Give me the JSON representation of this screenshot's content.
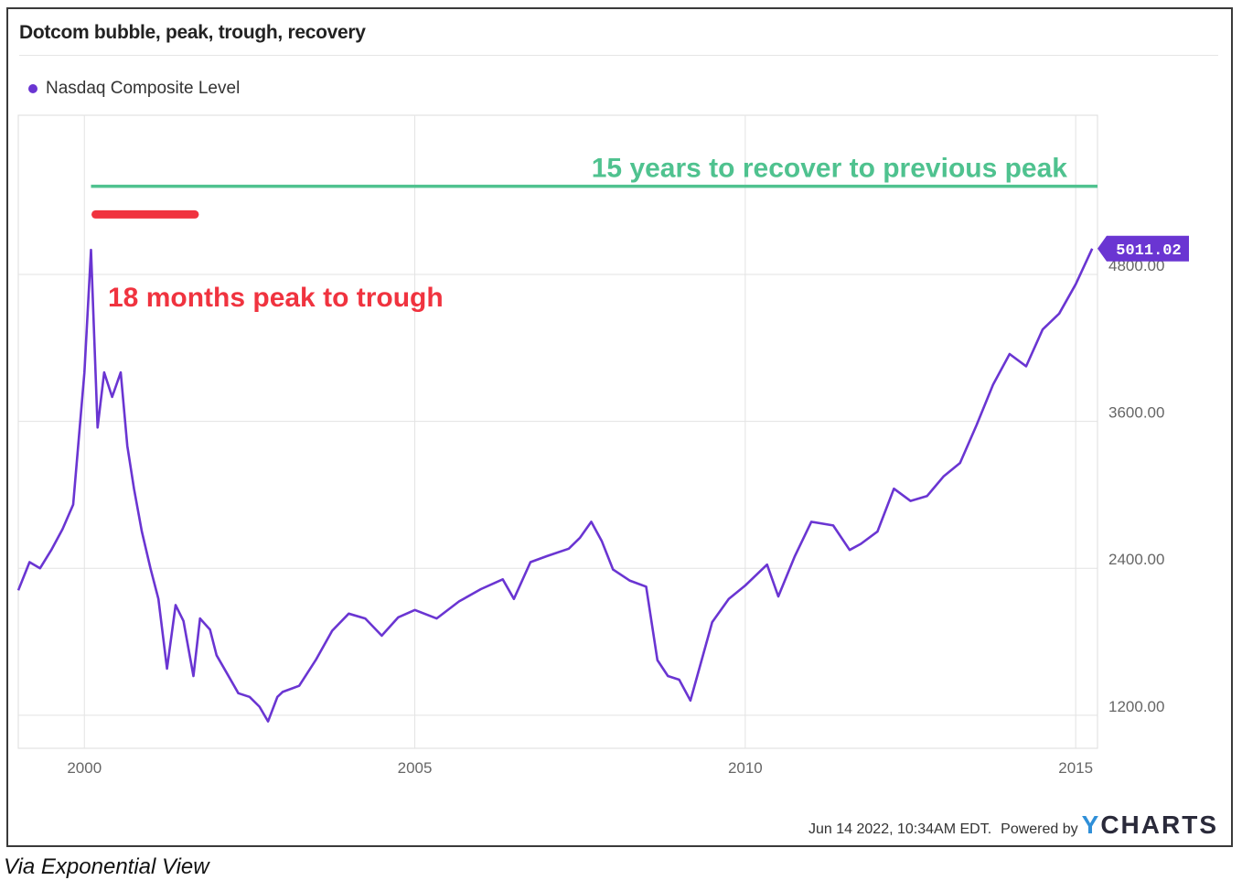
{
  "colors": {
    "series": "#6a35d2",
    "red_annotation": "#f0333f",
    "green_annotation": "#4fc28f",
    "grid": "#e3e3e3",
    "tick": "#666666"
  },
  "footer": {
    "timestamp": "Jun 14 2022, 10:34AM EDT.",
    "powered_by": "Powered by",
    "logo_y": "Y",
    "logo_rest": "CHARTS"
  },
  "caption": "Via Exponential View",
  "chart_data": {
    "type": "line",
    "title": "Dotcom bubble, peak, trough, recovery",
    "xlabel": "",
    "ylabel": "",
    "x_ticks": [
      2000,
      2005,
      2010,
      2015
    ],
    "x_tick_labels": [
      "2000",
      "2005",
      "2010",
      "2015"
    ],
    "y_ticks": [
      1200,
      2400,
      3600,
      4800
    ],
    "y_tick_labels": [
      "1200.00",
      "2400.00",
      "3600.00",
      "4800.00"
    ],
    "xlim": [
      1999.0,
      2015.33
    ],
    "ylim": [
      930,
      6100
    ],
    "grid": true,
    "legend_position": "top-left",
    "series": [
      {
        "name": "Nasdaq Composite Level",
        "x": [
          1999.0,
          1999.17,
          1999.33,
          1999.5,
          1999.67,
          1999.83,
          2000.0,
          2000.1,
          2000.2,
          2000.3,
          2000.42,
          2000.55,
          2000.65,
          2000.75,
          2000.87,
          2001.0,
          2001.12,
          2001.25,
          2001.38,
          2001.5,
          2001.65,
          2001.75,
          2001.9,
          2002.0,
          2002.17,
          2002.33,
          2002.5,
          2002.65,
          2002.78,
          2002.92,
          2003.0,
          2003.25,
          2003.5,
          2003.75,
          2004.0,
          2004.25,
          2004.5,
          2004.75,
          2005.0,
          2005.33,
          2005.67,
          2006.0,
          2006.33,
          2006.5,
          2006.75,
          2007.0,
          2007.33,
          2007.5,
          2007.67,
          2007.83,
          2008.0,
          2008.25,
          2008.5,
          2008.67,
          2008.83,
          2009.0,
          2009.17,
          2009.5,
          2009.75,
          2010.0,
          2010.33,
          2010.5,
          2010.75,
          2011.0,
          2011.33,
          2011.58,
          2011.75,
          2012.0,
          2012.25,
          2012.5,
          2012.75,
          2013.0,
          2013.25,
          2013.5,
          2013.75,
          2014.0,
          2014.25,
          2014.5,
          2014.75,
          2015.0,
          2015.25
        ],
        "values": [
          2220,
          2450,
          2400,
          2550,
          2720,
          2920,
          4000,
          5000,
          3550,
          4000,
          3800,
          4000,
          3400,
          3050,
          2700,
          2400,
          2150,
          1580,
          2100,
          1970,
          1520,
          1990,
          1900,
          1690,
          1530,
          1380,
          1350,
          1270,
          1150,
          1350,
          1390,
          1440,
          1650,
          1890,
          2030,
          1990,
          1850,
          2000,
          2060,
          1990,
          2130,
          2230,
          2310,
          2150,
          2450,
          2500,
          2560,
          2650,
          2780,
          2620,
          2390,
          2300,
          2250,
          1650,
          1520,
          1490,
          1320,
          1960,
          2150,
          2260,
          2430,
          2170,
          2500,
          2780,
          2750,
          2550,
          2600,
          2700,
          3050,
          2950,
          2990,
          3150,
          3260,
          3570,
          3900,
          4150,
          4050,
          4350,
          4480,
          4720,
          5011.02
        ]
      }
    ],
    "last_value_label": "5011.02",
    "annotations": [
      {
        "text": "18 months peak to trough",
        "x_start": 2000.17,
        "x_end": 2001.67,
        "y": 5290
      },
      {
        "text": "15 years to recover to previous peak",
        "x_start": 2000.1,
        "x_end": 2015.33,
        "y": 5520
      }
    ]
  }
}
